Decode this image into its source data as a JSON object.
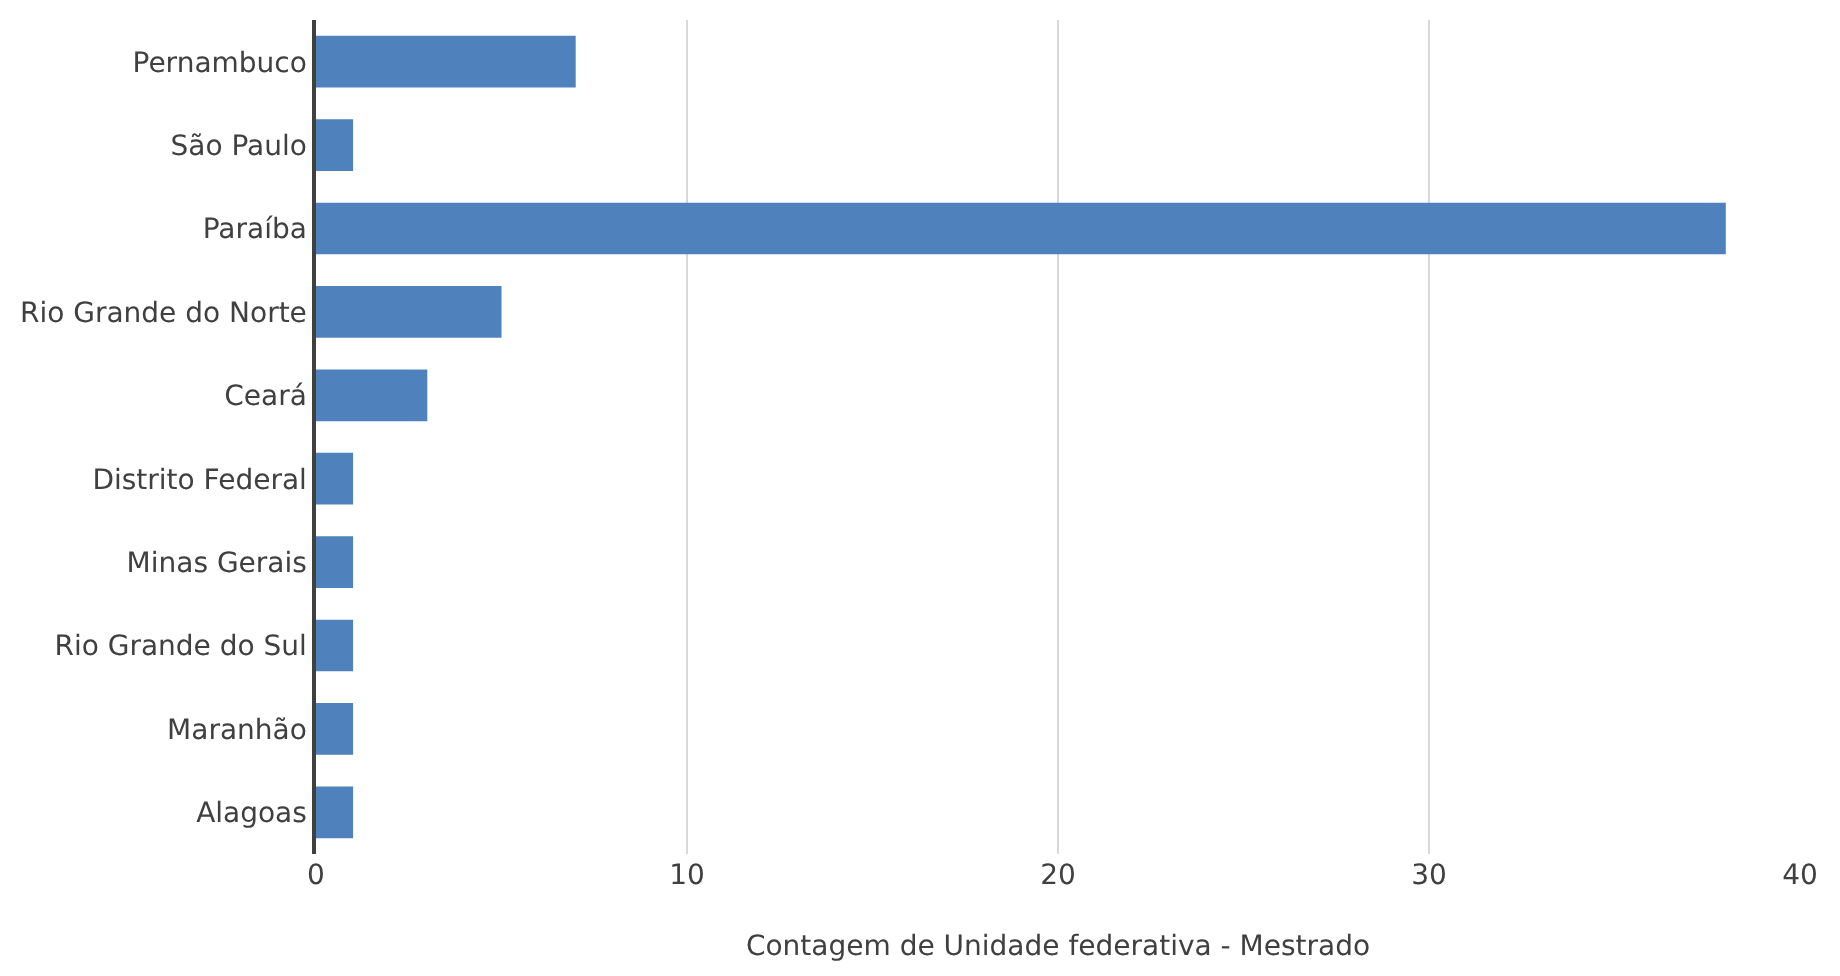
{
  "chart_data": {
    "type": "bar",
    "orientation": "horizontal",
    "xlabel": "Contagem de Unidade federativa - Mestrado",
    "categories": [
      "Pernambuco",
      "São Paulo",
      "Paraíba",
      "Rio Grande do Norte",
      "Ceará",
      "Distrito Federal",
      "Minas Gerais",
      "Rio Grande do Sul",
      "Maranhão",
      "Alagoas"
    ],
    "values": [
      7,
      1,
      38,
      5,
      3,
      1,
      1,
      1,
      1,
      1
    ],
    "color": "#4f81bd",
    "xlim": [
      0,
      40
    ],
    "xticks": [
      0,
      10,
      20,
      30,
      40
    ],
    "grid": "x",
    "legend": false
  }
}
